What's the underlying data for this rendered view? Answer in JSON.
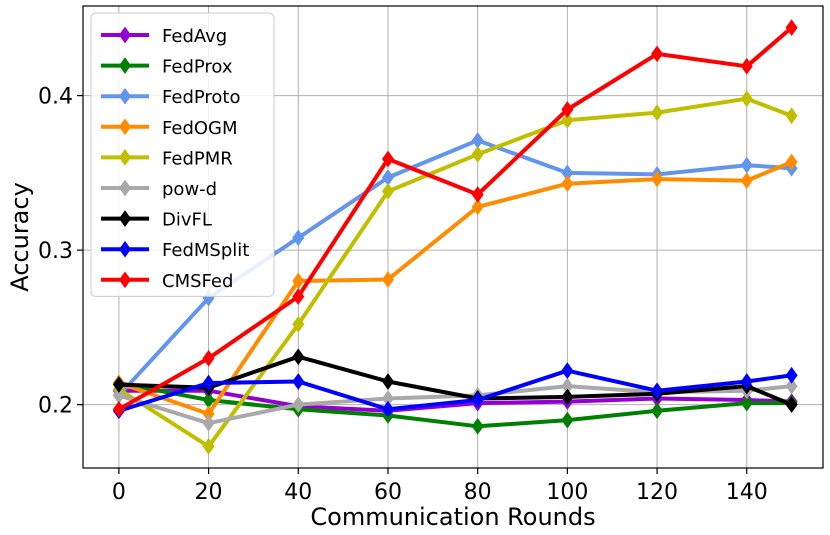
{
  "chart_data": {
    "type": "line",
    "title": "",
    "xlabel": "Communication Rounds",
    "ylabel": "Accuracy",
    "xlim": [
      -8,
      157
    ],
    "ylim": [
      0.159,
      0.458
    ],
    "xticks": [
      0,
      20,
      40,
      60,
      80,
      100,
      120,
      140
    ],
    "xtick_labels": [
      "0",
      "20",
      "40",
      "60",
      "80",
      "100",
      "120",
      "140"
    ],
    "yticks": [
      0.2,
      0.3,
      0.4
    ],
    "ytick_labels": [
      "0.2",
      "0.3",
      "0.4"
    ],
    "grid": true,
    "legend_position": "upper-left",
    "x": [
      0,
      20,
      40,
      60,
      80,
      100,
      120,
      140,
      150
    ],
    "series": [
      {
        "name": "FedAvg",
        "color": "#9400d3",
        "values": [
          0.209,
          0.209,
          0.199,
          0.196,
          0.201,
          0.202,
          0.204,
          0.203,
          0.202
        ]
      },
      {
        "name": "FedProx",
        "color": "#008000",
        "values": [
          0.214,
          0.203,
          0.197,
          0.193,
          0.186,
          0.19,
          0.196,
          0.201,
          0.201
        ]
      },
      {
        "name": "FedProto",
        "color": "#6495ed",
        "values": [
          0.206,
          0.269,
          0.308,
          0.347,
          0.371,
          0.35,
          0.349,
          0.355,
          0.353
        ]
      },
      {
        "name": "FedOGM",
        "color": "#ff8c00",
        "values": [
          0.214,
          0.194,
          0.28,
          0.281,
          0.328,
          0.343,
          0.346,
          0.345,
          0.357
        ]
      },
      {
        "name": "FedPMR",
        "color": "#bfbf00",
        "values": [
          0.21,
          0.173,
          0.252,
          0.338,
          0.362,
          0.384,
          0.389,
          0.398,
          0.387
        ]
      },
      {
        "name": "pow-d",
        "color": "#a9a9a9",
        "values": [
          0.206,
          0.188,
          0.2,
          0.204,
          0.206,
          0.212,
          0.208,
          0.209,
          0.212
        ]
      },
      {
        "name": "DivFL",
        "color": "#000000",
        "values": [
          0.213,
          0.211,
          0.231,
          0.215,
          0.204,
          0.205,
          0.207,
          0.212,
          0.2
        ]
      },
      {
        "name": "FedMSplit",
        "color": "#0000ff",
        "values": [
          0.196,
          0.214,
          0.215,
          0.197,
          0.203,
          0.222,
          0.209,
          0.215,
          0.219
        ]
      },
      {
        "name": "CMSFed",
        "color": "#ff0000",
        "values": [
          0.197,
          0.23,
          0.27,
          0.359,
          0.336,
          0.391,
          0.427,
          0.419,
          0.444
        ]
      }
    ]
  }
}
